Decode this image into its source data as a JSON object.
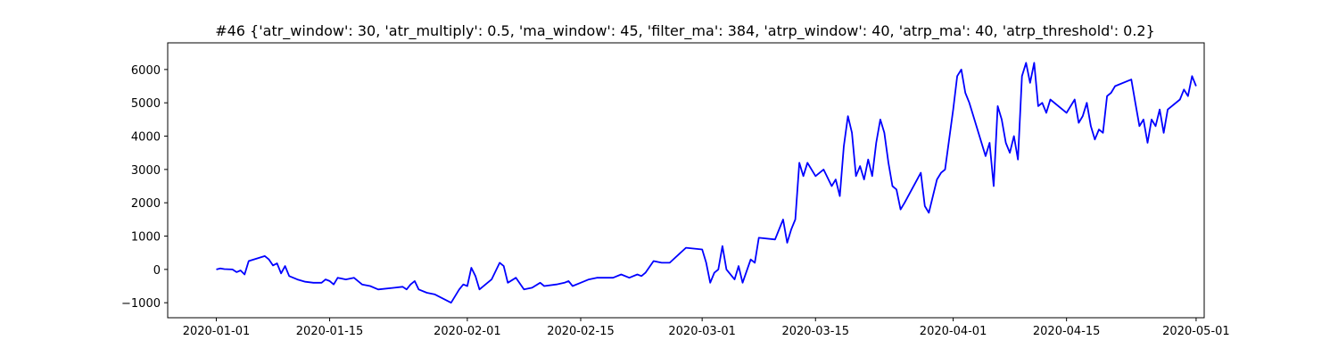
{
  "chart_data": {
    "type": "line",
    "title": "#46 {'atr_window': 30, 'atr_multiply': 0.5, 'ma_window': 45, 'filter_ma': 384, 'atrp_window': 40, 'atrp_ma': 40, 'atrp_threshold': 0.2}",
    "xlabel": "",
    "ylabel": "",
    "grid": false,
    "xlim": [
      "2019-12-26",
      "2020-05-02"
    ],
    "ylim": [
      -1450,
      6800
    ],
    "x_ticks": [
      "2020-01-01",
      "2020-01-15",
      "2020-02-01",
      "2020-02-15",
      "2020-03-01",
      "2020-03-15",
      "2020-04-01",
      "2020-04-15",
      "2020-05-01"
    ],
    "y_ticks": [
      -1000,
      0,
      1000,
      2000,
      3000,
      4000,
      5000,
      6000
    ],
    "y_tick_labels": [
      "−1000",
      "0",
      "1000",
      "2000",
      "3000",
      "4000",
      "5000",
      "6000"
    ],
    "line_color": "#0000ff",
    "series": [
      {
        "points": [
          [
            "2020-01-01",
            0
          ],
          [
            "2020-01-01 12:00",
            30
          ],
          [
            "2020-01-02",
            10
          ],
          [
            "2020-01-03",
            0
          ],
          [
            "2020-01-03 12:00",
            -80
          ],
          [
            "2020-01-04",
            -30
          ],
          [
            "2020-01-04 12:00",
            -150
          ],
          [
            "2020-01-05",
            250
          ],
          [
            "2020-01-07",
            400
          ],
          [
            "2020-01-07 12:00",
            300
          ],
          [
            "2020-01-08",
            120
          ],
          [
            "2020-01-08 12:00",
            180
          ],
          [
            "2020-01-09",
            -120
          ],
          [
            "2020-01-09 12:00",
            100
          ],
          [
            "2020-01-10",
            -200
          ],
          [
            "2020-01-11",
            -300
          ],
          [
            "2020-01-12",
            -370
          ],
          [
            "2020-01-13",
            -400
          ],
          [
            "2020-01-14",
            -400
          ],
          [
            "2020-01-14 12:00",
            -300
          ],
          [
            "2020-01-15",
            -350
          ],
          [
            "2020-01-15 12:00",
            -450
          ],
          [
            "2020-01-16",
            -250
          ],
          [
            "2020-01-17",
            -300
          ],
          [
            "2020-01-18",
            -250
          ],
          [
            "2020-01-19",
            -450
          ],
          [
            "2020-01-20",
            -500
          ],
          [
            "2020-01-21",
            -600
          ],
          [
            "2020-01-23",
            -550
          ],
          [
            "2020-01-24",
            -520
          ],
          [
            "2020-01-24 12:00",
            -600
          ],
          [
            "2020-01-25",
            -450
          ],
          [
            "2020-01-25 12:00",
            -350
          ],
          [
            "2020-01-26",
            -600
          ],
          [
            "2020-01-27",
            -700
          ],
          [
            "2020-01-28",
            -750
          ],
          [
            "2020-01-30",
            -1000
          ],
          [
            "2020-01-31",
            -600
          ],
          [
            "2020-01-31 12:00",
            -450
          ],
          [
            "2020-02-01",
            -500
          ],
          [
            "2020-02-01 12:00",
            50
          ],
          [
            "2020-02-02",
            -200
          ],
          [
            "2020-02-02 12:00",
            -600
          ],
          [
            "2020-02-04",
            -300
          ],
          [
            "2020-02-05",
            200
          ],
          [
            "2020-02-05 12:00",
            100
          ],
          [
            "2020-02-06",
            -400
          ],
          [
            "2020-02-07",
            -250
          ],
          [
            "2020-02-08",
            -600
          ],
          [
            "2020-02-09",
            -550
          ],
          [
            "2020-02-10",
            -400
          ],
          [
            "2020-02-10 12:00",
            -500
          ],
          [
            "2020-02-12",
            -450
          ],
          [
            "2020-02-13",
            -400
          ],
          [
            "2020-02-13 12:00",
            -350
          ],
          [
            "2020-02-14",
            -500
          ],
          [
            "2020-02-15",
            -400
          ],
          [
            "2020-02-16",
            -300
          ],
          [
            "2020-02-17",
            -250
          ],
          [
            "2020-02-19",
            -250
          ],
          [
            "2020-02-20",
            -150
          ],
          [
            "2020-02-21",
            -250
          ],
          [
            "2020-02-22",
            -150
          ],
          [
            "2020-02-22 12:00",
            -200
          ],
          [
            "2020-02-23",
            -100
          ],
          [
            "2020-02-24",
            250
          ],
          [
            "2020-02-25",
            200
          ],
          [
            "2020-02-26",
            200
          ],
          [
            "2020-02-28",
            650
          ],
          [
            "2020-03-01",
            600
          ],
          [
            "2020-03-01 12:00",
            200
          ],
          [
            "2020-03-02",
            -400
          ],
          [
            "2020-03-02 12:00",
            -100
          ],
          [
            "2020-03-03",
            0
          ],
          [
            "2020-03-03 12:00",
            700
          ],
          [
            "2020-03-04",
            0
          ],
          [
            "2020-03-05",
            -300
          ],
          [
            "2020-03-05 12:00",
            100
          ],
          [
            "2020-03-06",
            -400
          ],
          [
            "2020-03-07",
            300
          ],
          [
            "2020-03-07 12:00",
            200
          ],
          [
            "2020-03-08",
            950
          ],
          [
            "2020-03-10",
            900
          ],
          [
            "2020-03-11",
            1500
          ],
          [
            "2020-03-11 12:00",
            800
          ],
          [
            "2020-03-12",
            1200
          ],
          [
            "2020-03-12 12:00",
            1500
          ],
          [
            "2020-03-13",
            3200
          ],
          [
            "2020-03-13 12:00",
            2800
          ],
          [
            "2020-03-14",
            3200
          ],
          [
            "2020-03-15",
            2800
          ],
          [
            "2020-03-16",
            3000
          ],
          [
            "2020-03-17",
            2500
          ],
          [
            "2020-03-17 12:00",
            2700
          ],
          [
            "2020-03-18",
            2200
          ],
          [
            "2020-03-18 12:00",
            3700
          ],
          [
            "2020-03-19",
            4600
          ],
          [
            "2020-03-19 12:00",
            4100
          ],
          [
            "2020-03-20",
            2800
          ],
          [
            "2020-03-20 12:00",
            3100
          ],
          [
            "2020-03-21",
            2700
          ],
          [
            "2020-03-21 12:00",
            3300
          ],
          [
            "2020-03-22",
            2800
          ],
          [
            "2020-03-22 12:00",
            3800
          ],
          [
            "2020-03-23",
            4500
          ],
          [
            "2020-03-23 12:00",
            4100
          ],
          [
            "2020-03-24",
            3200
          ],
          [
            "2020-03-24 12:00",
            2500
          ],
          [
            "2020-03-25",
            2400
          ],
          [
            "2020-03-25 12:00",
            1800
          ],
          [
            "2020-03-26",
            2000
          ],
          [
            "2020-03-28",
            2900
          ],
          [
            "2020-03-28 12:00",
            1900
          ],
          [
            "2020-03-29",
            1700
          ],
          [
            "2020-03-30",
            2700
          ],
          [
            "2020-03-30 12:00",
            2900
          ],
          [
            "2020-03-31",
            3000
          ],
          [
            "2020-04-01",
            4800
          ],
          [
            "2020-04-01 12:00",
            5800
          ],
          [
            "2020-04-02",
            6000
          ],
          [
            "2020-04-02 12:00",
            5300
          ],
          [
            "2020-04-03",
            5000
          ],
          [
            "2020-04-05",
            3400
          ],
          [
            "2020-04-05 12:00",
            3800
          ],
          [
            "2020-04-06",
            2500
          ],
          [
            "2020-04-06 12:00",
            4900
          ],
          [
            "2020-04-07",
            4500
          ],
          [
            "2020-04-07 12:00",
            3800
          ],
          [
            "2020-04-08",
            3500
          ],
          [
            "2020-04-08 12:00",
            4000
          ],
          [
            "2020-04-09",
            3300
          ],
          [
            "2020-04-09 12:00",
            5800
          ],
          [
            "2020-04-10",
            6200
          ],
          [
            "2020-04-10 12:00",
            5600
          ],
          [
            "2020-04-11",
            6200
          ],
          [
            "2020-04-11 12:00",
            4900
          ],
          [
            "2020-04-12",
            5000
          ],
          [
            "2020-04-12 12:00",
            4700
          ],
          [
            "2020-04-13",
            5100
          ],
          [
            "2020-04-15",
            4700
          ],
          [
            "2020-04-16",
            5100
          ],
          [
            "2020-04-16 12:00",
            4400
          ],
          [
            "2020-04-17",
            4600
          ],
          [
            "2020-04-17 12:00",
            5000
          ],
          [
            "2020-04-18",
            4300
          ],
          [
            "2020-04-18 12:00",
            3900
          ],
          [
            "2020-04-19",
            4200
          ],
          [
            "2020-04-19 12:00",
            4100
          ],
          [
            "2020-04-20",
            5200
          ],
          [
            "2020-04-20 12:00",
            5300
          ],
          [
            "2020-04-21",
            5500
          ],
          [
            "2020-04-23",
            5700
          ],
          [
            "2020-04-23 12:00",
            5000
          ],
          [
            "2020-04-24",
            4300
          ],
          [
            "2020-04-24 12:00",
            4500
          ],
          [
            "2020-04-25",
            3800
          ],
          [
            "2020-04-25 12:00",
            4500
          ],
          [
            "2020-04-26",
            4300
          ],
          [
            "2020-04-26 12:00",
            4800
          ],
          [
            "2020-04-27",
            4100
          ],
          [
            "2020-04-27 12:00",
            4800
          ],
          [
            "2020-04-29",
            5100
          ],
          [
            "2020-04-29 12:00",
            5400
          ],
          [
            "2020-04-30",
            5200
          ],
          [
            "2020-04-30 12:00",
            5800
          ],
          [
            "2020-05-01",
            5500
          ]
        ]
      }
    ]
  }
}
